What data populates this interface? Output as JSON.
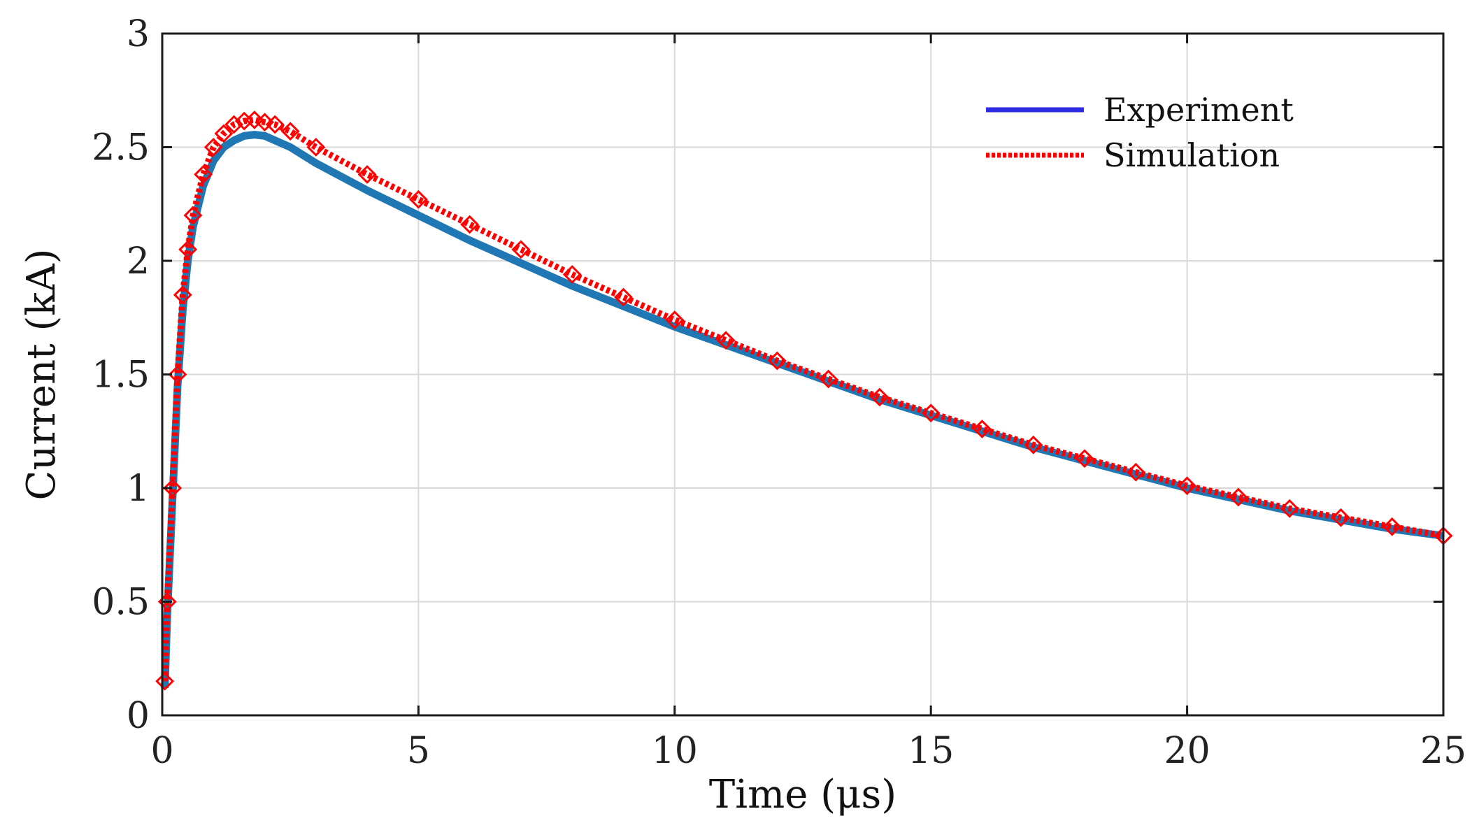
{
  "chart_data": {
    "type": "line",
    "title": "",
    "xlabel": "Time (μs)",
    "ylabel": "Current (kA)",
    "xlim": [
      0,
      25
    ],
    "ylim": [
      0,
      3
    ],
    "xticks": [
      0,
      5,
      10,
      15,
      20,
      25
    ],
    "xtick_labels": [
      "0",
      "5",
      "10",
      "15",
      "20",
      "25"
    ],
    "yticks": [
      0,
      0.5,
      1,
      1.5,
      2,
      2.5,
      3
    ],
    "ytick_labels": [
      "0",
      "0.5",
      "1",
      "1.5",
      "2",
      "2.5",
      "3"
    ],
    "grid": true,
    "legend_position": "top-right",
    "legend": [
      {
        "label": "Experiment",
        "color": "#2b2be0",
        "style": "solid"
      },
      {
        "label": "Simulation",
        "color": "#ff0000",
        "style": "dotted"
      }
    ],
    "series": [
      {
        "name": "Experiment",
        "plot_color": "#1f77b4",
        "x": [
          0.05,
          0.1,
          0.2,
          0.3,
          0.4,
          0.5,
          0.6,
          0.8,
          1.0,
          1.2,
          1.4,
          1.6,
          1.8,
          2.0,
          2.2,
          2.5,
          3,
          4,
          5,
          6,
          7,
          8,
          9,
          10,
          11,
          12,
          13,
          14,
          15,
          16,
          17,
          18,
          19,
          20,
          21,
          22,
          23,
          24,
          25
        ],
        "values": [
          0.12,
          0.45,
          0.95,
          1.45,
          1.78,
          2.0,
          2.15,
          2.33,
          2.44,
          2.5,
          2.53,
          2.55,
          2.555,
          2.55,
          2.53,
          2.5,
          2.43,
          2.31,
          2.2,
          2.09,
          1.99,
          1.89,
          1.8,
          1.71,
          1.63,
          1.55,
          1.47,
          1.39,
          1.32,
          1.25,
          1.18,
          1.12,
          1.06,
          1.0,
          0.95,
          0.9,
          0.86,
          0.82,
          0.79
        ]
      },
      {
        "name": "Simulation",
        "plot_color": "#ff0000",
        "x": [
          0.05,
          0.1,
          0.2,
          0.3,
          0.4,
          0.5,
          0.6,
          0.8,
          1.0,
          1.2,
          1.4,
          1.6,
          1.8,
          2.0,
          2.2,
          2.5,
          3,
          4,
          5,
          6,
          7,
          8,
          9,
          10,
          11,
          12,
          13,
          14,
          15,
          16,
          17,
          18,
          19,
          20,
          21,
          22,
          23,
          24,
          25
        ],
        "values": [
          0.15,
          0.5,
          1.0,
          1.5,
          1.85,
          2.05,
          2.2,
          2.38,
          2.5,
          2.56,
          2.6,
          2.615,
          2.62,
          2.61,
          2.6,
          2.57,
          2.5,
          2.38,
          2.27,
          2.16,
          2.05,
          1.94,
          1.84,
          1.74,
          1.65,
          1.56,
          1.48,
          1.4,
          1.33,
          1.26,
          1.19,
          1.13,
          1.07,
          1.01,
          0.96,
          0.91,
          0.87,
          0.83,
          0.79
        ]
      }
    ]
  }
}
